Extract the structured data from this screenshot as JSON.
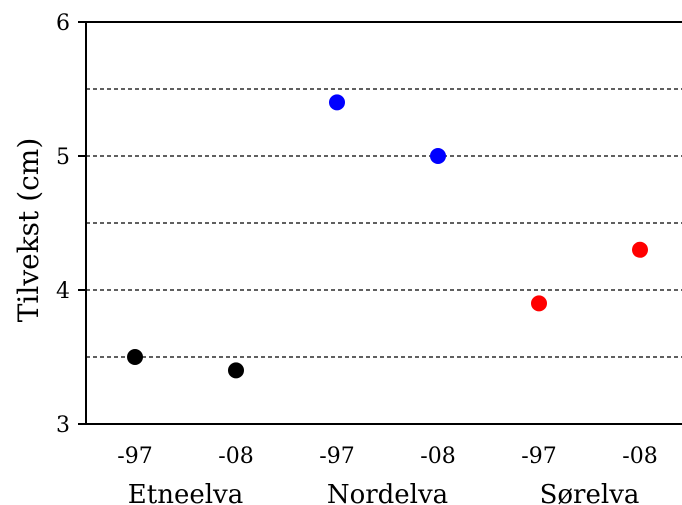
{
  "chart_data": {
    "type": "scatter",
    "title": "",
    "xlabel": "",
    "ylabel": "Tilvekst (cm)",
    "ylim": [
      3,
      6
    ],
    "yticks": [
      3,
      4,
      5,
      6
    ],
    "gridlines": [
      3.5,
      4,
      4.5,
      5,
      5.5
    ],
    "grid_style": "dashed horizontal",
    "categories": [
      "-97",
      "-08",
      "-97",
      "-08",
      "-97",
      "-08"
    ],
    "groups": [
      {
        "name": "Etneelva",
        "color": "#000000",
        "points": [
          {
            "x": "-97",
            "y": 3.5
          },
          {
            "x": "-08",
            "y": 3.4
          }
        ]
      },
      {
        "name": "Nordelva",
        "color": "#0000ff",
        "points": [
          {
            "x": "-97",
            "y": 5.4
          },
          {
            "x": "-08",
            "y": 5.0
          }
        ]
      },
      {
        "name": "Sørelva",
        "color": "#ff0000",
        "points": [
          {
            "x": "-97",
            "y": 3.9
          },
          {
            "x": "-08",
            "y": 4.3
          }
        ]
      }
    ]
  }
}
